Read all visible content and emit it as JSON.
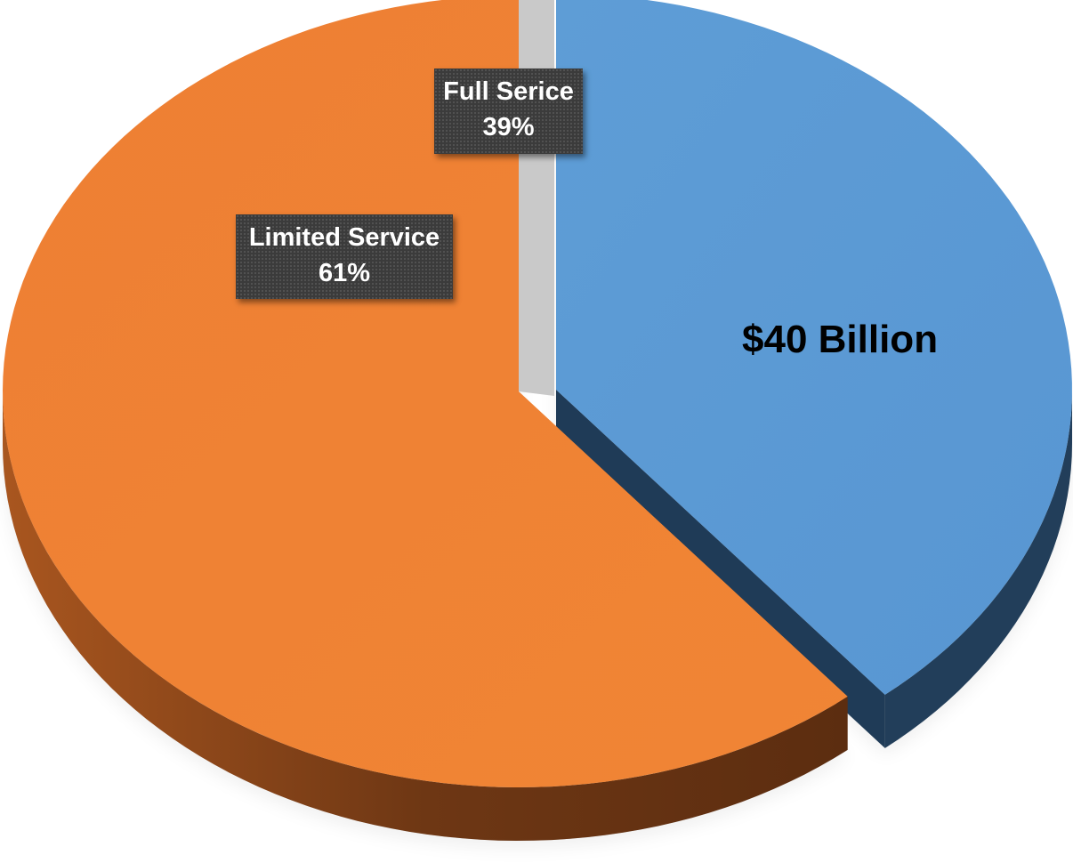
{
  "chart_data": {
    "type": "pie",
    "title": "",
    "slices": [
      {
        "label": "Full Serice",
        "value": 39,
        "value_text": "39%",
        "color": "#5b9bd5",
        "exploded": true
      },
      {
        "label": "Limited Service",
        "value": 61,
        "value_text": "61%",
        "color": "#ed7d31",
        "exploded": false
      }
    ],
    "annotation": "$40 Billion",
    "style": "3d"
  }
}
